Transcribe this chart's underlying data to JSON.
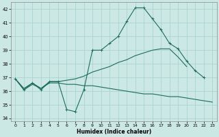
{
  "xlabel": "Humidex (Indice chaleur)",
  "xlim": [
    -0.5,
    23.5
  ],
  "ylim": [
    33.8,
    42.5
  ],
  "xticks": [
    0,
    1,
    2,
    3,
    4,
    5,
    6,
    7,
    8,
    9,
    10,
    11,
    12,
    13,
    14,
    15,
    16,
    17,
    18,
    19,
    20,
    21,
    22,
    23
  ],
  "yticks": [
    34,
    35,
    36,
    37,
    38,
    39,
    40,
    41,
    42
  ],
  "bg_color": "#cce8e5",
  "grid_color": "#aad4cf",
  "line_color": "#1c6b5c",
  "line1_x": [
    0,
    1,
    2,
    3,
    4,
    5,
    6,
    7,
    8,
    9,
    10,
    11,
    12,
    13,
    14,
    15,
    16,
    17,
    18,
    19,
    20,
    21,
    22
  ],
  "line1_y": [
    36.9,
    36.1,
    36.6,
    36.1,
    36.7,
    36.7,
    34.65,
    34.5,
    36.1,
    39.0,
    39.0,
    39.5,
    40.0,
    41.1,
    42.1,
    42.1,
    41.3,
    40.5,
    39.5,
    39.1,
    38.2,
    37.5,
    37.0
  ],
  "line2_x": [
    0,
    1,
    2,
    3,
    4,
    5,
    6,
    7,
    8,
    9,
    10,
    11,
    12,
    13,
    14,
    15,
    16,
    17,
    18,
    19,
    20
  ],
  "line2_y": [
    36.9,
    36.2,
    36.6,
    36.2,
    36.7,
    36.7,
    36.8,
    36.9,
    37.1,
    37.4,
    37.6,
    37.8,
    38.1,
    38.3,
    38.6,
    38.8,
    39.0,
    39.1,
    39.1,
    38.5,
    37.8
  ],
  "line3_x": [
    0,
    1,
    2,
    3,
    4,
    5,
    6,
    7,
    8,
    9,
    10,
    11,
    12,
    13,
    14,
    15,
    16,
    17,
    18,
    19,
    20,
    21,
    22,
    23
  ],
  "line3_y": [
    36.9,
    36.1,
    36.5,
    36.2,
    36.6,
    36.6,
    36.5,
    36.5,
    36.4,
    36.4,
    36.3,
    36.2,
    36.1,
    36.0,
    35.9,
    35.8,
    35.8,
    35.7,
    35.6,
    35.6,
    35.5,
    35.4,
    35.3,
    35.2
  ]
}
